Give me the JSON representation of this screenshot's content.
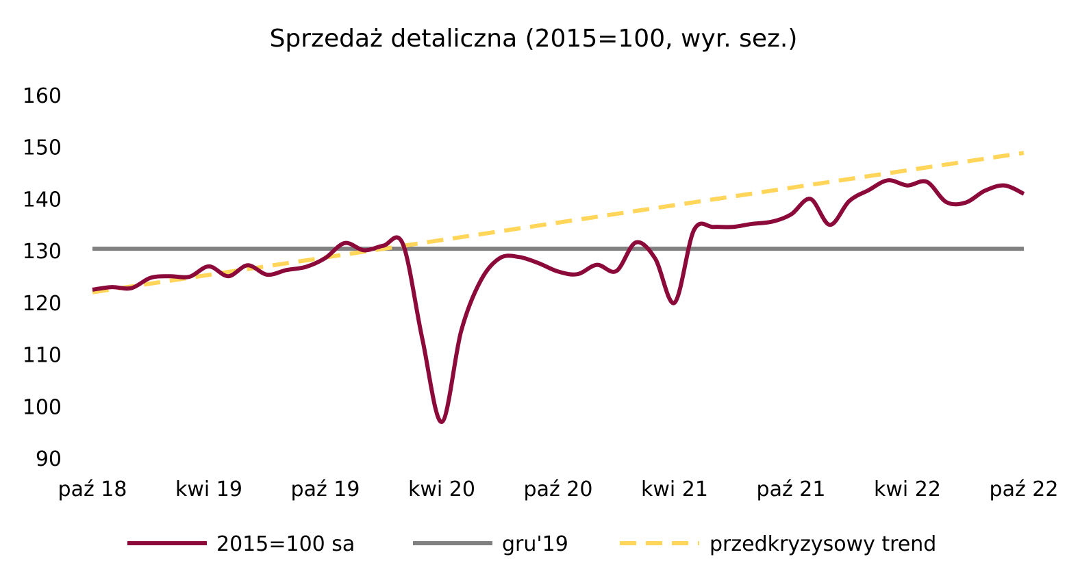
{
  "chart_data": {
    "type": "line",
    "title": "Sprzedaż detaliczna (2015=100, wyr. sez.)",
    "xlabel": "",
    "ylabel": "",
    "ylim": [
      90,
      160
    ],
    "y_ticks": [
      "160",
      "150",
      "140",
      "130",
      "120",
      "110",
      "100",
      "90"
    ],
    "x_tick_labels": [
      "paź 18",
      "kwi 19",
      "paź 19",
      "kwi 20",
      "paź 20",
      "kwi 21",
      "paź 21",
      "kwi 22",
      "paź 22"
    ],
    "x": [
      "paź 18",
      "lis 18",
      "gru 18",
      "sty 19",
      "lut 19",
      "mar 19",
      "kwi 19",
      "maj 19",
      "cze 19",
      "lip 19",
      "sie 19",
      "wrz 19",
      "paź 19",
      "lis 19",
      "gru 19",
      "sty 20",
      "lut 20",
      "mar 20",
      "kwi 20",
      "maj 20",
      "cze 20",
      "lip 20",
      "sie 20",
      "wrz 20",
      "paź 20",
      "lis 20",
      "gru 20",
      "sty 21",
      "lut 21",
      "mar 21",
      "kwi 21",
      "maj 21",
      "cze 21",
      "lip 21",
      "sie 21",
      "wrz 21",
      "paź 21",
      "lis 21",
      "gru 21",
      "sty 22",
      "lut 22",
      "mar 22",
      "kwi 22",
      "maj 22",
      "cze 22",
      "lip 22",
      "sie 22",
      "wrz 22",
      "paź 22"
    ],
    "series": [
      {
        "name": "2015=100 sa",
        "color": "#8b0a3a",
        "style": "solid",
        "values": [
          122.5,
          123.0,
          122.8,
          124.8,
          125.1,
          125.0,
          127.0,
          125.1,
          127.2,
          125.4,
          126.3,
          126.9,
          128.6,
          131.5,
          130.1,
          131.0,
          131.3,
          113.0,
          97.0,
          114.5,
          124.2,
          128.6,
          128.8,
          127.6,
          126.0,
          125.5,
          127.3,
          126.1,
          131.6,
          128.5,
          120.0,
          134.0,
          134.6,
          134.6,
          135.2,
          135.6,
          137.0,
          140.0,
          135.0,
          139.6,
          141.7,
          143.6,
          142.6,
          143.3,
          139.4,
          139.3,
          141.6,
          142.6,
          141.0
        ]
      },
      {
        "name": "gru'19",
        "color": "#808080",
        "style": "solid",
        "values": [
          130.4,
          130.4,
          130.4,
          130.4,
          130.4,
          130.4,
          130.4,
          130.4,
          130.4,
          130.4,
          130.4,
          130.4,
          130.4,
          130.4,
          130.4,
          130.4,
          130.4,
          130.4,
          130.4,
          130.4,
          130.4,
          130.4,
          130.4,
          130.4,
          130.4,
          130.4,
          130.4,
          130.4,
          130.4,
          130.4,
          130.4,
          130.4,
          130.4,
          130.4,
          130.4,
          130.4,
          130.4,
          130.4,
          130.4,
          130.4,
          130.4,
          130.4,
          130.4,
          130.4,
          130.4,
          130.4,
          130.4,
          130.4,
          130.4
        ]
      },
      {
        "name": "przedkryzysowy trend",
        "color": "#ffd55a",
        "style": "dashed",
        "values": [
          122.0,
          122.56,
          123.12,
          123.68,
          124.24,
          124.8,
          125.36,
          125.92,
          126.48,
          127.04,
          127.6,
          128.16,
          128.72,
          129.28,
          129.84,
          130.4,
          130.96,
          131.52,
          132.08,
          132.64,
          133.2,
          133.76,
          134.32,
          134.88,
          135.44,
          136.0,
          136.56,
          137.12,
          137.68,
          138.24,
          138.8,
          139.36,
          139.92,
          140.48,
          141.04,
          141.6,
          142.16,
          142.72,
          143.28,
          143.84,
          144.4,
          144.96,
          145.52,
          146.08,
          146.64,
          147.2,
          147.76,
          148.32,
          148.88
        ]
      }
    ],
    "legend_position": "bottom",
    "grid": false
  }
}
